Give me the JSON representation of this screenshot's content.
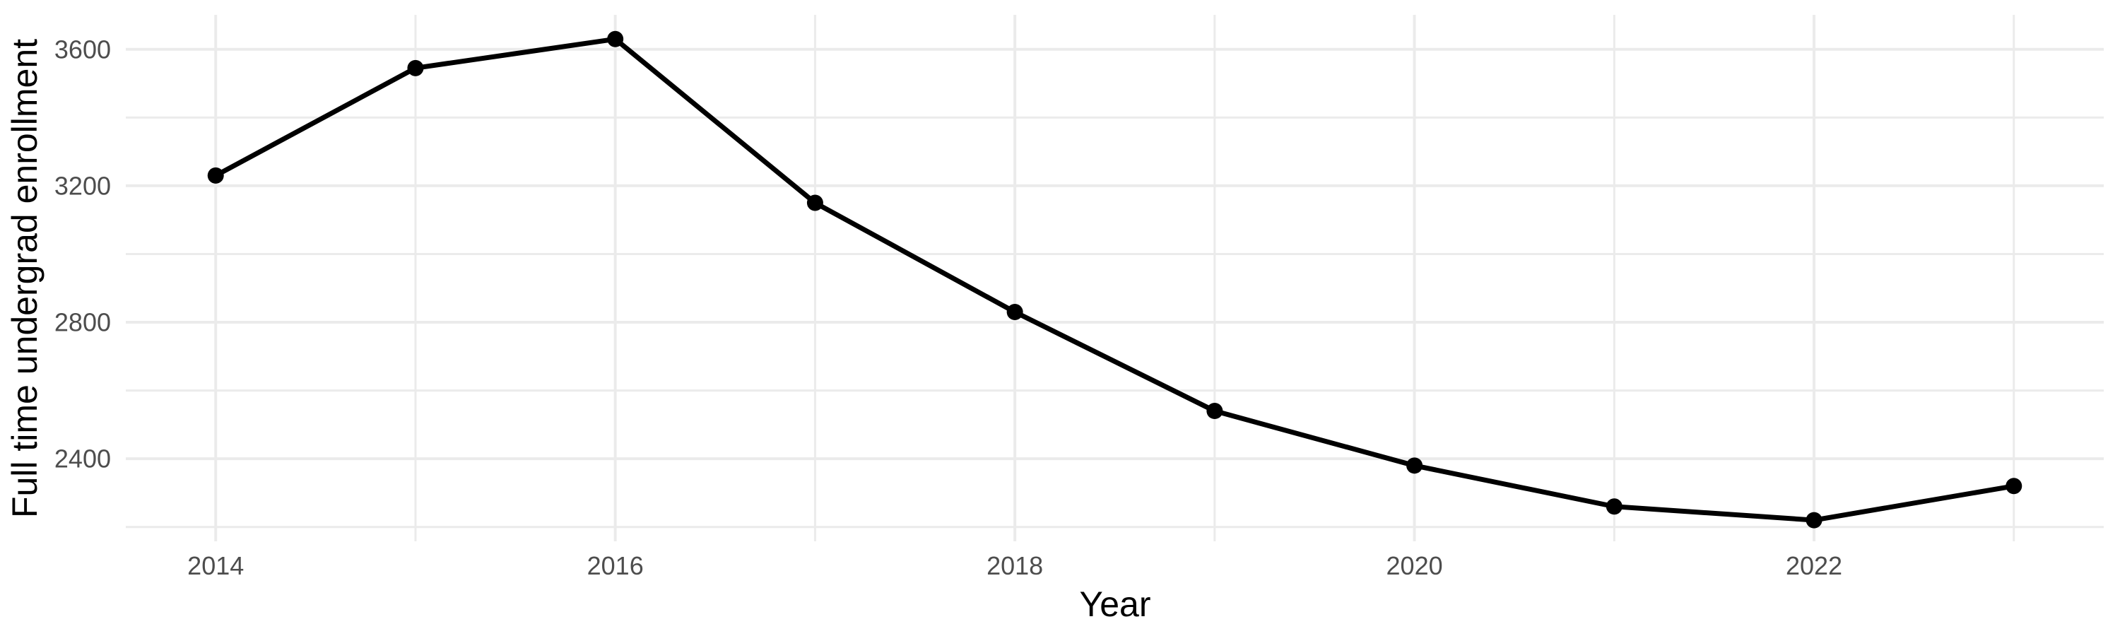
{
  "chart_data": {
    "type": "line",
    "title": "",
    "xlabel": "Year",
    "ylabel": "Full time undergrad enrollment",
    "x": [
      2014,
      2015,
      2016,
      2017,
      2018,
      2019,
      2020,
      2021,
      2022,
      2023
    ],
    "values": [
      3230,
      3545,
      3630,
      3150,
      2830,
      2540,
      2380,
      2260,
      2220,
      2320
    ],
    "series_name": "Full time undergrad enrollment",
    "x_major_ticks": [
      2014,
      2016,
      2018,
      2020,
      2022
    ],
    "x_minor_gridlines": [
      2015,
      2017,
      2019,
      2021,
      2023
    ],
    "y_major_ticks": [
      3600,
      3200,
      2800,
      2400
    ],
    "y_minor_gridlines": [
      3400,
      3000,
      2600,
      2200
    ],
    "xlim": [
      2013.55,
      2023.45
    ],
    "ylim": [
      2158,
      3701
    ],
    "grid": true,
    "legend": false,
    "marker": "filled-circle",
    "line_color": "#000000",
    "point_color": "#000000",
    "grid_major_color": "#ebebeb",
    "grid_minor_color": "#ebebeb",
    "tick_label_color": "#4d4d4d",
    "axis_title_color": "#000000",
    "background_color": "#ffffff"
  }
}
